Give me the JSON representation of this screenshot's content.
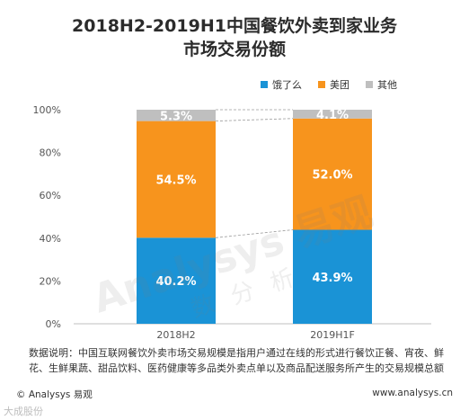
{
  "title_line1": "2018H2-2019H1中国餐饮外卖到家业务",
  "title_line2": "市场交易份额",
  "legend": [
    {
      "label": "饿了么",
      "color": "#1a93d6"
    },
    {
      "label": "美团",
      "color": "#f7941d"
    },
    {
      "label": "其他",
      "color": "#bfbfbf"
    }
  ],
  "chart_data": {
    "type": "bar",
    "stacked": true,
    "categories": [
      "2018H2",
      "2019H1F"
    ],
    "series": [
      {
        "name": "饿了么",
        "values": [
          40.2,
          43.9
        ],
        "labels": [
          "40.2%",
          "43.9%"
        ],
        "color": "#1a93d6"
      },
      {
        "name": "美团",
        "values": [
          54.5,
          52.0
        ],
        "labels": [
          "54.5%",
          "52.0%"
        ],
        "color": "#f7941d"
      },
      {
        "name": "其他",
        "values": [
          5.3,
          4.1
        ],
        "labels": [
          "5.3%",
          "4.1%"
        ],
        "color": "#bfbfbf"
      }
    ],
    "yticks": [
      "0%",
      "20%",
      "40%",
      "60%",
      "80%",
      "100%"
    ],
    "ylim": [
      0,
      100
    ]
  },
  "note": "数据说明：中国互联网餐饮外卖市场交易规模是指用户通过在线的形式进行餐饮正餐、宵夜、鲜花、生鲜果蔬、甜品饮料、医药健康等多品类外卖点单以及商品配送服务所产生的交易规模总额",
  "footer_left": "© Analysys 易观",
  "footer_right": "www.analysys.cn",
  "watermark_main": "Analysys 易观",
  "watermark_sub": "数 分 析",
  "watermark_bottom": "大成股份"
}
